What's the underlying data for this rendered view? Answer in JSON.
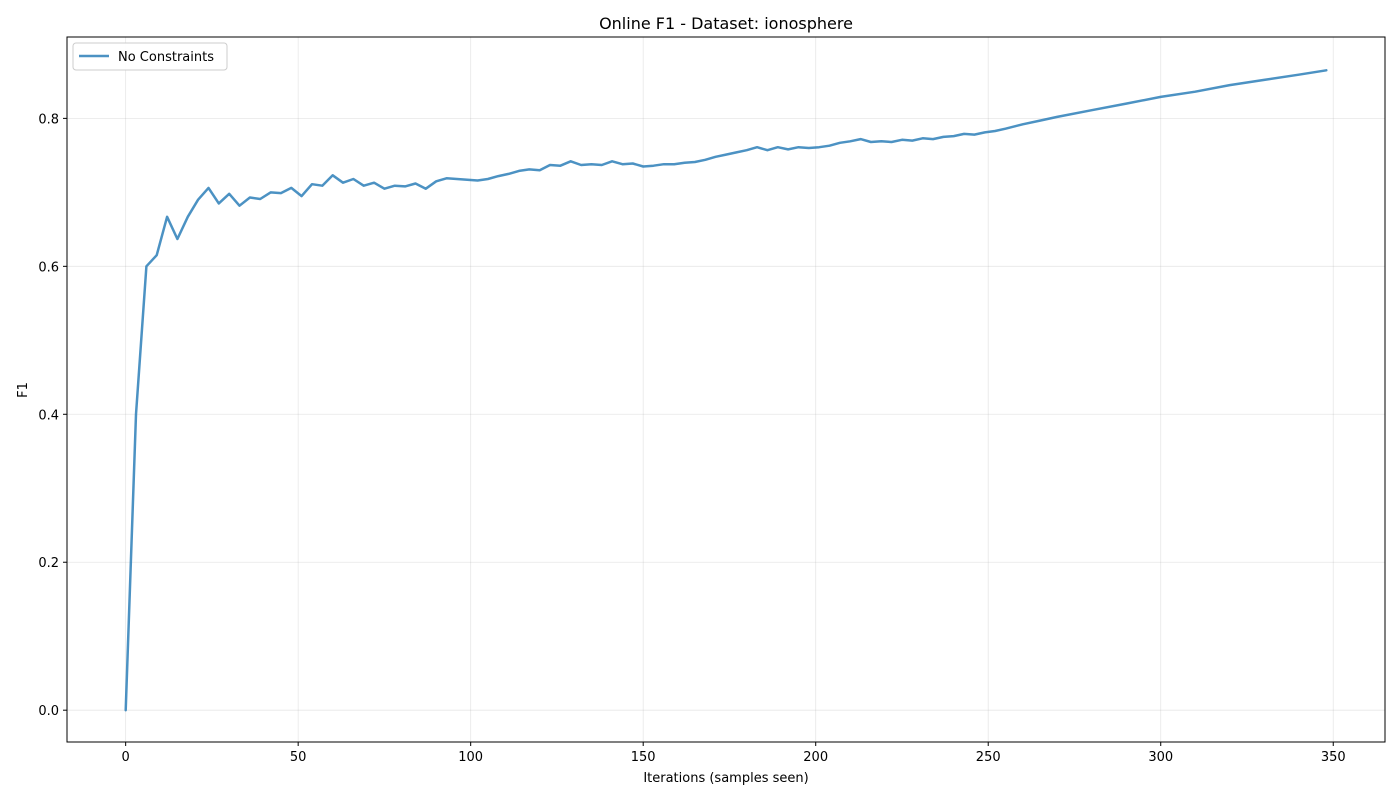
{
  "chart_data": {
    "type": "line",
    "title": "Online F1 - Dataset: ionosphere",
    "xlabel": "Iterations (samples seen)",
    "ylabel": "F1",
    "xlim": [
      -17,
      365
    ],
    "ylim": [
      -0.043,
      0.91
    ],
    "xticks": [
      0,
      50,
      100,
      150,
      200,
      250,
      300,
      350
    ],
    "yticks": [
      0.0,
      0.2,
      0.4,
      0.6,
      0.8
    ],
    "ytick_labels": [
      "0.0",
      "0.2",
      "0.4",
      "0.6",
      "0.8"
    ],
    "grid": true,
    "legend_position": "upper-left",
    "series": [
      {
        "name": "No Constraints",
        "color": "#1f77b4",
        "x": [
          0,
          3,
          6,
          9,
          12,
          15,
          18,
          21,
          24,
          27,
          30,
          33,
          36,
          39,
          42,
          45,
          48,
          51,
          54,
          57,
          60,
          63,
          66,
          69,
          72,
          75,
          78,
          81,
          84,
          87,
          90,
          93,
          96,
          99,
          102,
          105,
          108,
          111,
          114,
          117,
          120,
          123,
          126,
          129,
          132,
          135,
          138,
          141,
          144,
          147,
          150,
          153,
          156,
          159,
          162,
          165,
          168,
          171,
          174,
          177,
          180,
          183,
          186,
          189,
          192,
          195,
          198,
          201,
          204,
          207,
          210,
          213,
          216,
          219,
          222,
          225,
          228,
          231,
          234,
          237,
          240,
          243,
          246,
          249,
          252,
          255,
          260,
          265,
          270,
          280,
          290,
          300,
          310,
          320,
          330,
          340,
          348
        ],
        "values": [
          0.0,
          0.4,
          0.6,
          0.615,
          0.667,
          0.637,
          0.667,
          0.69,
          0.706,
          0.685,
          0.698,
          0.682,
          0.693,
          0.691,
          0.7,
          0.699,
          0.706,
          0.695,
          0.711,
          0.709,
          0.723,
          0.713,
          0.718,
          0.709,
          0.713,
          0.705,
          0.709,
          0.708,
          0.712,
          0.705,
          0.715,
          0.719,
          0.718,
          0.717,
          0.716,
          0.718,
          0.722,
          0.725,
          0.729,
          0.731,
          0.73,
          0.737,
          0.736,
          0.742,
          0.737,
          0.738,
          0.737,
          0.742,
          0.738,
          0.739,
          0.735,
          0.736,
          0.738,
          0.738,
          0.74,
          0.741,
          0.744,
          0.748,
          0.751,
          0.754,
          0.757,
          0.761,
          0.757,
          0.761,
          0.758,
          0.761,
          0.76,
          0.761,
          0.763,
          0.767,
          0.769,
          0.772,
          0.768,
          0.769,
          0.768,
          0.771,
          0.77,
          0.773,
          0.772,
          0.775,
          0.776,
          0.779,
          0.778,
          0.781,
          0.783,
          0.786,
          0.792,
          0.797,
          0.802,
          0.811,
          0.82,
          0.829,
          0.836,
          0.845,
          0.852,
          0.859,
          0.865
        ]
      }
    ]
  }
}
